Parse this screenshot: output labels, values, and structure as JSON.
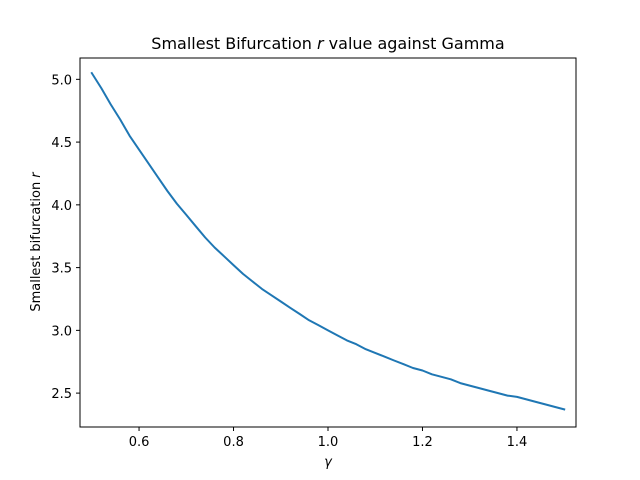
{
  "chart_data": {
    "type": "line",
    "title_parts": [
      "Smallest Bifurcation ",
      "r",
      " value against Gamma"
    ],
    "xlabel": "γ",
    "ylabel_parts": [
      "Smallest bifurcation ",
      "r"
    ],
    "xlim": [
      0.475,
      1.525
    ],
    "ylim": [
      2.23,
      5.17
    ],
    "xticks": [
      0.6,
      0.8,
      1.0,
      1.2,
      1.4
    ],
    "xtick_labels": [
      "0.6",
      "0.8",
      "1.0",
      "1.2",
      "1.4"
    ],
    "yticks": [
      2.5,
      3.0,
      3.5,
      4.0,
      4.5,
      5.0
    ],
    "ytick_labels": [
      "2.5",
      "3.0",
      "3.5",
      "4.0",
      "4.5",
      "5.0"
    ],
    "grid": false,
    "line_color": "#1f77b4",
    "series": [
      {
        "x": [
          0.5,
          0.52,
          0.54,
          0.56,
          0.58,
          0.6,
          0.62,
          0.64,
          0.66,
          0.68,
          0.7,
          0.72,
          0.74,
          0.76,
          0.78,
          0.8,
          0.82,
          0.84,
          0.86,
          0.88,
          0.9,
          0.92,
          0.94,
          0.96,
          0.98,
          1.0,
          1.02,
          1.04,
          1.06,
          1.08,
          1.1,
          1.12,
          1.14,
          1.16,
          1.18,
          1.2,
          1.22,
          1.24,
          1.26,
          1.28,
          1.3,
          1.32,
          1.34,
          1.36,
          1.38,
          1.4,
          1.42,
          1.44,
          1.46,
          1.48,
          1.5
        ],
        "y": [
          5.05,
          4.93,
          4.8,
          4.68,
          4.55,
          4.44,
          4.33,
          4.22,
          4.11,
          4.01,
          3.92,
          3.83,
          3.74,
          3.66,
          3.59,
          3.52,
          3.45,
          3.39,
          3.33,
          3.28,
          3.23,
          3.18,
          3.13,
          3.08,
          3.04,
          3.0,
          2.96,
          2.92,
          2.89,
          2.85,
          2.82,
          2.79,
          2.76,
          2.73,
          2.7,
          2.68,
          2.65,
          2.63,
          2.61,
          2.58,
          2.56,
          2.54,
          2.52,
          2.5,
          2.48,
          2.47,
          2.45,
          2.43,
          2.41,
          2.39,
          2.37
        ]
      }
    ]
  }
}
